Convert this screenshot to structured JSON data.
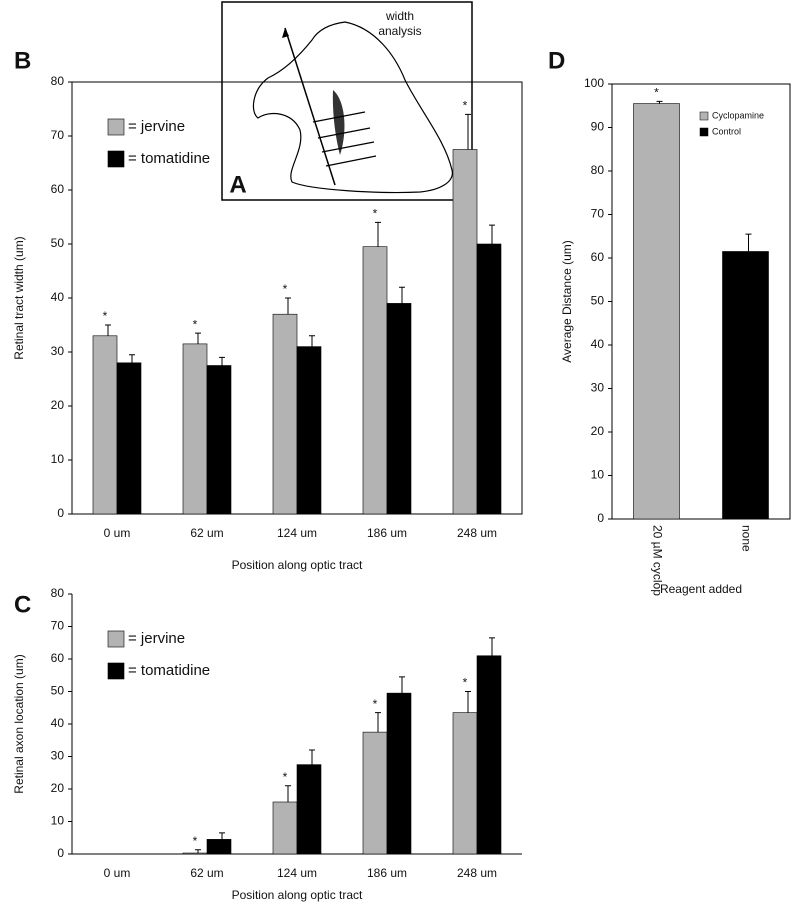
{
  "diagram": {
    "label_lines": [
      "width",
      "analysis"
    ],
    "panel_label": "A"
  },
  "chart_data": [
    {
      "type": "bar",
      "panel_label": "B",
      "xlabel": "Position along optic tract",
      "ylabel": "Retinal tract width (um)",
      "categories": [
        "0 um",
        "62 um",
        "124 um",
        "186 um",
        "248 um"
      ],
      "series": [
        {
          "name": "= jervine",
          "color": "#b3b3b3",
          "values": [
            33,
            31.5,
            37,
            49.5,
            67.5
          ],
          "errors": [
            2,
            2,
            3,
            4.5,
            6.5
          ],
          "markers": [
            "*",
            "*",
            "*",
            "*",
            "*"
          ]
        },
        {
          "name": "= tomatidine",
          "color": "#000000",
          "values": [
            28,
            27.5,
            31,
            39,
            50
          ],
          "errors": [
            1.5,
            1.5,
            2,
            3,
            3.5
          ]
        }
      ],
      "ylim": [
        0,
        80
      ],
      "yticks": [
        0,
        10,
        20,
        30,
        40,
        50,
        60,
        70,
        80
      ],
      "legend": "upper left"
    },
    {
      "type": "bar",
      "panel_label": "C",
      "xlabel": "Position along optic tract",
      "ylabel": "Retinal axon location (um)",
      "categories": [
        "0 um",
        "62 um",
        "124 um",
        "186 um",
        "248 um"
      ],
      "series": [
        {
          "name": "= jervine",
          "color": "#b3b3b3",
          "values": [
            0,
            0.3,
            16,
            37.5,
            43.5
          ],
          "errors": [
            0,
            1,
            5,
            6,
            6.5
          ],
          "markers": [
            null,
            "*",
            "*",
            "*",
            "*"
          ]
        },
        {
          "name": "= tomatidine",
          "color": "#000000",
          "values": [
            0,
            4.5,
            27.5,
            49.5,
            61
          ],
          "errors": [
            0,
            2,
            4.5,
            5,
            5.5
          ]
        }
      ],
      "ylim": [
        0,
        80
      ],
      "yticks": [
        0,
        10,
        20,
        30,
        40,
        50,
        60,
        70,
        80
      ],
      "legend": "upper left"
    },
    {
      "type": "bar",
      "panel_label": "D",
      "xlabel": "Reagent added",
      "ylabel": "Average Distance (um)",
      "categories": [
        "20 µM cyclop",
        "none"
      ],
      "series": [
        {
          "name": "Cyclopamine",
          "color": "#b3b3b3",
          "values": [
            95.5,
            null
          ],
          "errors": [
            0.5,
            null
          ],
          "markers": [
            "*",
            null
          ]
        },
        {
          "name": "Control",
          "color": "#000000",
          "values": [
            null,
            61.5
          ],
          "errors": [
            null,
            4
          ]
        }
      ],
      "ylim": [
        0,
        100
      ],
      "yticks": [
        0,
        10,
        20,
        30,
        40,
        50,
        60,
        70,
        80,
        90,
        100
      ],
      "legend": "upper right"
    }
  ]
}
